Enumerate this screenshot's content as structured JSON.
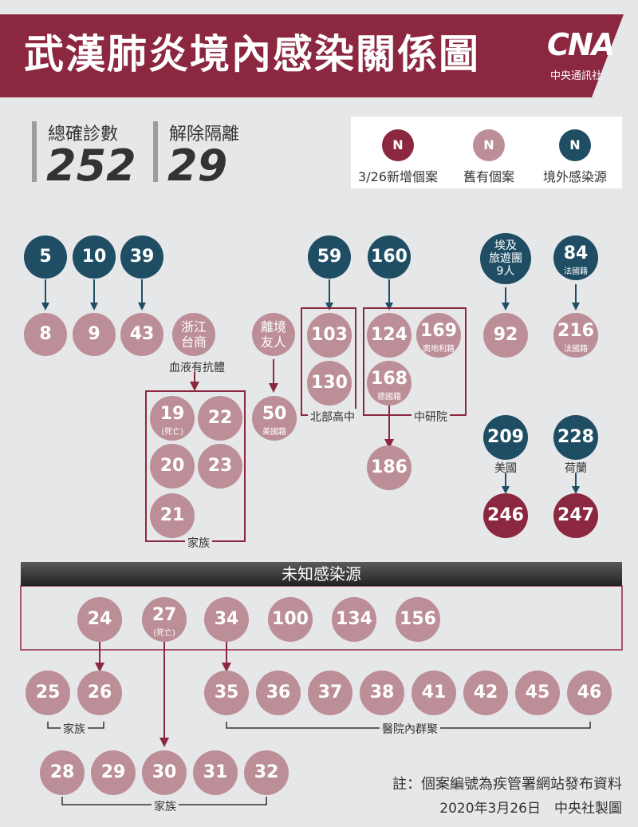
{
  "title": "武漢肺炎境內感染關係圖",
  "logo": {
    "mark": "CNA",
    "sub": "中央通訊社"
  },
  "stats": {
    "confirmed_label": "總確診數",
    "confirmed_value": "252",
    "released_label": "解除隔離",
    "released_value": "29"
  },
  "legend": {
    "glyph": "N",
    "items": [
      {
        "label": "3/26新增個案",
        "color": "#8c2740"
      },
      {
        "label": "舊有個案",
        "color": "#bc8f98"
      },
      {
        "label": "境外感染源",
        "color": "#1f4e64"
      }
    ]
  },
  "colors": {
    "new": "#8c2740",
    "old": "#bc8f98",
    "external": "#1f4e64",
    "line": "#8c2740"
  },
  "nodes": {
    "n5": "5",
    "n10": "10",
    "n39": "39",
    "n59": "59",
    "n160": "160",
    "egypt": [
      "埃及",
      "旅遊團",
      "9人"
    ],
    "n84": "84",
    "n84_sub": "法國籍",
    "n8": "8",
    "n9": "9",
    "n43": "43",
    "zhejiang": [
      "浙江",
      "台商"
    ],
    "friend": [
      "離境",
      "友人"
    ],
    "n103": "103",
    "n124": "124",
    "n169": "169",
    "n169_sub": "奧地利籍",
    "n92": "92",
    "n216": "216",
    "n216_sub": "法國籍",
    "n130": "130",
    "n168": "168",
    "n168_sub": "德國籍",
    "n19": "19",
    "n19_sub": "(死亡)",
    "n22": "22",
    "n20": "20",
    "n23": "23",
    "n21": "21",
    "n50": "50",
    "n50_sub": "美國籍",
    "n186": "186",
    "n209": "209",
    "n228": "228",
    "n246": "246",
    "n247": "247",
    "u24": "24",
    "u27": "27",
    "u27_sub": "(死亡)",
    "u34": "34",
    "u100": "100",
    "u134": "134",
    "u156": "156",
    "n25": "25",
    "n26": "26",
    "n35": "35",
    "n36": "36",
    "n37": "37",
    "n38": "38",
    "n41": "41",
    "n42": "42",
    "n45": "45",
    "n46": "46",
    "n28": "28",
    "n29": "29",
    "n30": "30",
    "n31": "31",
    "n32": "32"
  },
  "labels": {
    "blood_antibody": "血液有抗體",
    "north_school": "北部高中",
    "academia": "中研院",
    "family_a": "家族",
    "usa": "美國",
    "netherlands": "荷蘭",
    "family_b": "家族",
    "hospital_cluster": "醫院內群聚",
    "family_c": "家族"
  },
  "unknown_source": "未知感染源",
  "notes": {
    "note1": "註：個案編號為疾管署網站發布資料",
    "note2": "2020年3月26日　中央社製圖"
  }
}
